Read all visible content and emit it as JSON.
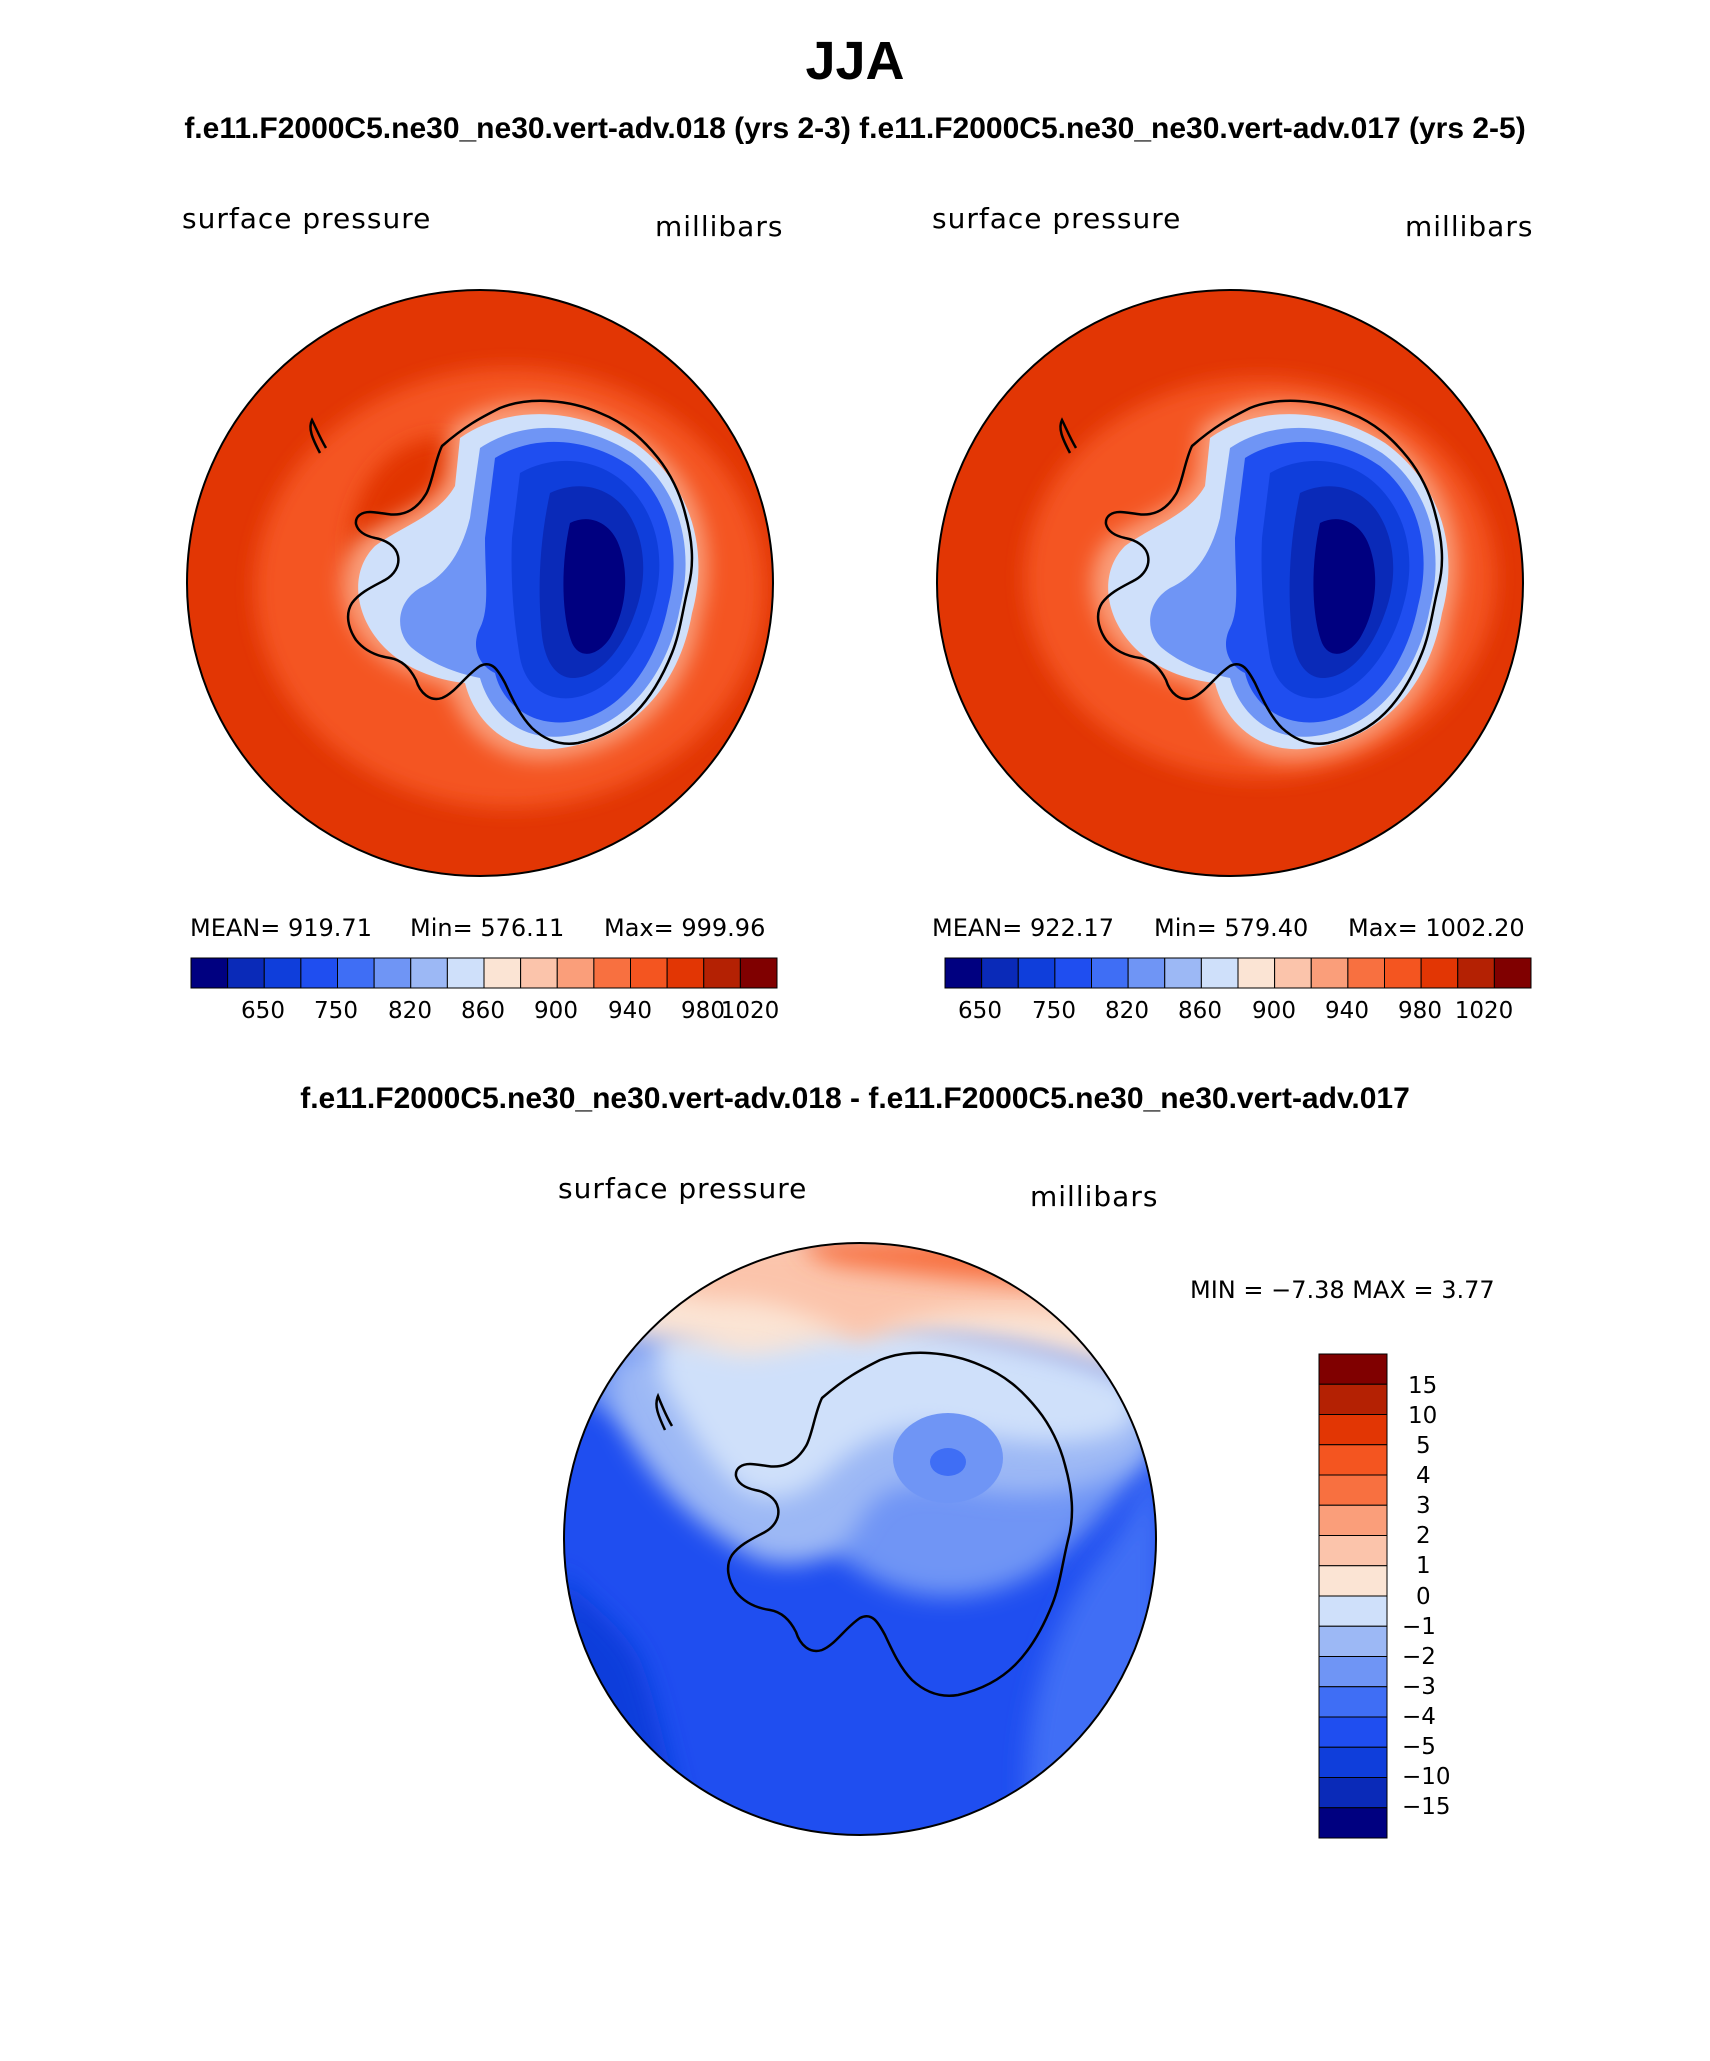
{
  "header": {
    "season": "JJA",
    "run_titles": "f.e11.F2000C5.ne30_ne30.vert-adv.018 (yrs 2-3)  f.e11.F2000C5.ne30_ne30.vert-adv.017 (yrs 2-5)",
    "diff_title": "f.e11.F2000C5.ne30_ne30.vert-adv.018 - f.e11.F2000C5.ne30_ne30.vert-adv.017"
  },
  "colors": {
    "abs": [
      "#000080",
      "#0a2ab8",
      "#0f3edb",
      "#1f4ef0",
      "#3f6ef5",
      "#6f95f5",
      "#9cb8f5",
      "#cfe0fa",
      "#fbe4d4",
      "#fbc4ab",
      "#fa9e7a",
      "#f87040",
      "#f45520",
      "#e23604",
      "#b42103",
      "#800000"
    ],
    "diff": [
      "#000080",
      "#0a2ab8",
      "#0f3edb",
      "#1f4ef0",
      "#3f6ef5",
      "#6f95f5",
      "#9cb8f5",
      "#cfe0fa",
      "#fbe4d4",
      "#fbc4ab",
      "#fa9e7a",
      "#f87040",
      "#f45520",
      "#e23604",
      "#b42103",
      "#800000"
    ]
  },
  "panels": [
    {
      "variable": "surface pressure",
      "units": "millibars",
      "mean_text": "MEAN= 919.71",
      "min_text": "Min= 576.11",
      "max_text": "Max= 999.96"
    },
    {
      "variable": "surface pressure",
      "units": "millibars",
      "mean_text": "MEAN= 922.17",
      "min_text": "Min= 579.40",
      "max_text": "Max= 1002.20"
    }
  ],
  "abs_tick_labels": [
    "650",
    "750",
    "820",
    "860",
    "900",
    "940",
    "980",
    "1020"
  ],
  "diff_panel": {
    "variable": "surface pressure",
    "units": "millibars",
    "minmax_text": "MIN =   −7.38  MAX =     3.77"
  },
  "diff_tick_labels": [
    "15",
    "10",
    "5",
    "4",
    "3",
    "2",
    "1",
    "0",
    "−1",
    "−2",
    "−3",
    "−4",
    "−5",
    "−10",
    "−15"
  ]
}
